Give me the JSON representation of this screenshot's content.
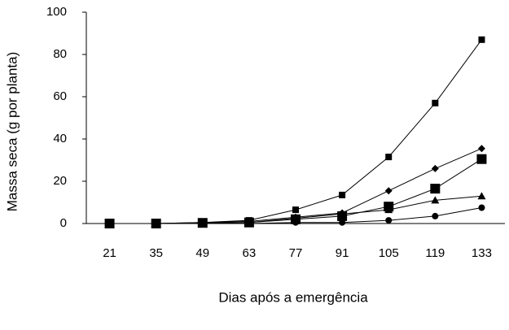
{
  "chart_data": {
    "type": "line",
    "x_label": "Dias após a emergência",
    "y_label": "Massa seca  (g por planta)",
    "categories": [
      21,
      35,
      49,
      63,
      77,
      91,
      105,
      119,
      133
    ],
    "series": [
      {
        "color": "#000000",
        "marker": "square",
        "values": [
          0,
          0,
          0.5,
          1.5,
          6.5,
          13.5,
          31.5,
          57,
          87
        ]
      },
      {
        "color": "#000000",
        "marker": "diamond",
        "values": [
          0,
          0,
          0.5,
          1,
          3,
          5,
          15.5,
          26,
          35.5
        ]
      },
      {
        "color": "#000000",
        "marker": "big-square",
        "values": [
          0,
          0,
          0.3,
          0.5,
          2,
          3.5,
          8,
          16.5,
          30.5
        ]
      },
      {
        "color": "#000000",
        "marker": "triangle",
        "values": [
          0,
          0,
          0.3,
          0.5,
          2.5,
          4.5,
          6.5,
          11,
          13
        ]
      },
      {
        "color": "#000000",
        "marker": "circle",
        "values": [
          0,
          0,
          0,
          0,
          0.5,
          0.5,
          1.5,
          3.5,
          7.5
        ]
      }
    ],
    "ylim": [
      0,
      100
    ],
    "yticks": [
      0,
      20,
      40,
      60,
      80,
      100
    ],
    "grid": false
  }
}
